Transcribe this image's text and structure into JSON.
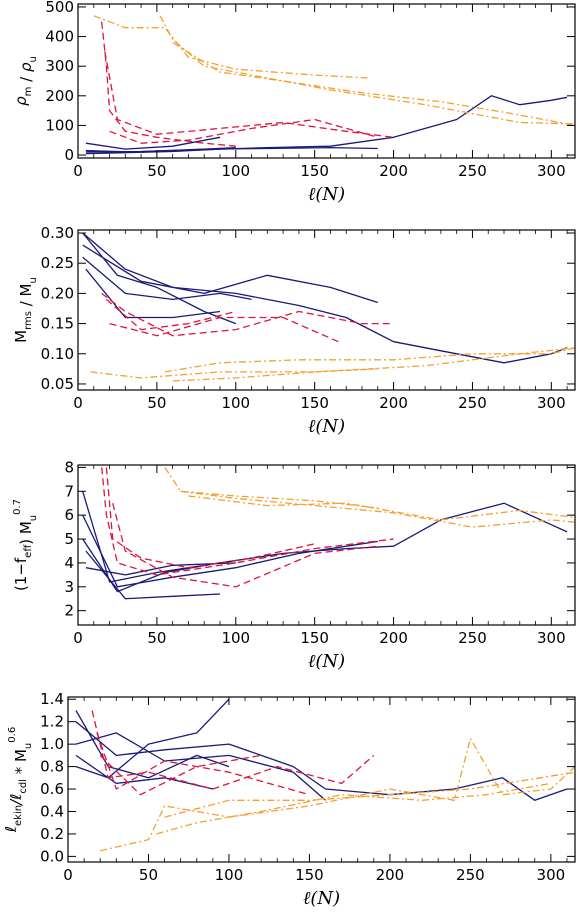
{
  "chart_data": [
    {
      "type": "line",
      "title": "",
      "ylabel": "ρ_m / ρ_u",
      "ylabel_parts": {
        "a": "ρ",
        "a_sub": "m",
        "mid": " / ",
        "b": "ρ",
        "b_sub": "u"
      },
      "xlabel": "ℓ(N)",
      "xlim": [
        0,
        315
      ],
      "ylim": [
        -10,
        510
      ],
      "xticks": [
        "0",
        "50",
        "100",
        "150",
        "200",
        "250",
        "300"
      ],
      "xtick_values": [
        0,
        50,
        100,
        150,
        200,
        250,
        300
      ],
      "yticks": [
        "0",
        "100",
        "200",
        "300",
        "400",
        "500"
      ],
      "ytick_values": [
        0,
        100,
        200,
        300,
        400,
        500
      ],
      "colors": {
        "navy": "#1a1a7a",
        "red": "#e0143c",
        "orange": "#f4a030"
      },
      "series": [
        {
          "color": "navy",
          "style": "solid",
          "x": [
            5,
            40,
            80,
            120,
            160,
            200,
            240,
            262,
            280,
            300,
            310
          ],
          "y": [
            15,
            10,
            18,
            25,
            30,
            60,
            120,
            200,
            170,
            185,
            195
          ]
        },
        {
          "color": "navy",
          "style": "solid",
          "x": [
            5,
            40,
            80,
            120,
            160,
            190
          ],
          "y": [
            10,
            12,
            20,
            22,
            25,
            22
          ]
        },
        {
          "color": "navy",
          "style": "solid",
          "x": [
            5,
            30,
            60,
            90
          ],
          "y": [
            40,
            20,
            30,
            60
          ]
        },
        {
          "color": "navy",
          "style": "solid",
          "x": [
            5,
            30,
            60,
            100
          ],
          "y": [
            15,
            10,
            15,
            25
          ]
        },
        {
          "color": "navy",
          "style": "solid",
          "x": [
            5,
            30,
            60,
            90
          ],
          "y": [
            5,
            8,
            12,
            20
          ]
        },
        {
          "color": "red",
          "style": "dashed",
          "x": [
            15,
            18,
            20,
            30,
            50,
            80,
            100
          ],
          "y": [
            450,
            300,
            150,
            80,
            60,
            40,
            30
          ]
        },
        {
          "color": "red",
          "style": "dashed",
          "x": [
            17,
            25,
            50,
            90,
            130,
            170,
            200
          ],
          "y": [
            350,
            120,
            70,
            90,
            110,
            80,
            60
          ]
        },
        {
          "color": "red",
          "style": "dashed",
          "x": [
            20,
            40,
            70,
            110,
            150,
            190
          ],
          "y": [
            80,
            40,
            50,
            90,
            120,
            60
          ]
        },
        {
          "color": "orange",
          "style": "dashdot",
          "x": [
            10,
            30,
            55,
            70,
            100,
            150,
            185
          ],
          "y": [
            470,
            430,
            430,
            330,
            290,
            270,
            260
          ]
        },
        {
          "color": "orange",
          "style": "dashdot",
          "x": [
            52,
            60,
            80,
            120,
            160,
            220,
            280,
            315
          ],
          "y": [
            470,
            390,
            300,
            260,
            220,
            170,
            110,
            105
          ]
        },
        {
          "color": "orange",
          "style": "dashdot",
          "x": [
            60,
            90,
            130,
            180,
            230,
            275,
            315
          ],
          "y": [
            380,
            280,
            250,
            210,
            180,
            140,
            100
          ]
        }
      ]
    },
    {
      "type": "line",
      "title": "",
      "ylabel": "M_rms / M_u",
      "ylabel_parts": {
        "a": "M",
        "a_sub": "rms",
        "mid": " / ",
        "b": "M",
        "b_sub": "u"
      },
      "xlabel": "ℓ(N)",
      "xlim": [
        0,
        315
      ],
      "ylim": [
        0.04,
        0.305
      ],
      "xticks": [
        "0",
        "50",
        "100",
        "150",
        "200",
        "250",
        "300"
      ],
      "xtick_values": [
        0,
        50,
        100,
        150,
        200,
        250,
        300
      ],
      "yticks": [
        "0.05",
        "0.10",
        "0.15",
        "0.20",
        "0.25",
        "0.30"
      ],
      "ytick_values": [
        0.05,
        0.1,
        0.15,
        0.2,
        0.25,
        0.3
      ],
      "colors": {
        "navy": "#1a1a7a",
        "red": "#e0143c",
        "orange": "#f4a030"
      },
      "series": [
        {
          "color": "navy",
          "style": "solid",
          "x": [
            3,
            30,
            60,
            100,
            140,
            170,
            200,
            240,
            270,
            300,
            310
          ],
          "y": [
            0.3,
            0.24,
            0.21,
            0.2,
            0.18,
            0.16,
            0.12,
            0.1,
            0.085,
            0.1,
            0.11
          ]
        },
        {
          "color": "navy",
          "style": "solid",
          "x": [
            3,
            40,
            80,
            120,
            160,
            190
          ],
          "y": [
            0.28,
            0.22,
            0.2,
            0.23,
            0.21,
            0.185
          ]
        },
        {
          "color": "navy",
          "style": "solid",
          "x": [
            3,
            30,
            60,
            90,
            110
          ],
          "y": [
            0.26,
            0.2,
            0.19,
            0.2,
            0.19
          ]
        },
        {
          "color": "navy",
          "style": "solid",
          "x": [
            3,
            25,
            50,
            80,
            100
          ],
          "y": [
            0.3,
            0.23,
            0.21,
            0.17,
            0.15
          ]
        },
        {
          "color": "navy",
          "style": "solid",
          "x": [
            5,
            30,
            60,
            90
          ],
          "y": [
            0.24,
            0.16,
            0.16,
            0.17
          ]
        },
        {
          "color": "red",
          "style": "dashed",
          "x": [
            15,
            30,
            60,
            100,
            140,
            180,
            200
          ],
          "y": [
            0.2,
            0.17,
            0.13,
            0.14,
            0.17,
            0.15,
            0.15
          ]
        },
        {
          "color": "red",
          "style": "dashed",
          "x": [
            18,
            40,
            70,
            100
          ],
          "y": [
            0.19,
            0.14,
            0.15,
            0.17
          ]
        },
        {
          "color": "red",
          "style": "dashed",
          "x": [
            20,
            50,
            90,
            130,
            165
          ],
          "y": [
            0.15,
            0.13,
            0.16,
            0.16,
            0.12
          ]
        },
        {
          "color": "orange",
          "style": "dashdot",
          "x": [
            8,
            40,
            90,
            150,
            190
          ],
          "y": [
            0.07,
            0.06,
            0.07,
            0.07,
            0.075
          ]
        },
        {
          "color": "orange",
          "style": "dashdot",
          "x": [
            55,
            90,
            140,
            200,
            250,
            300,
            315
          ],
          "y": [
            0.07,
            0.085,
            0.09,
            0.09,
            0.1,
            0.1,
            0.11
          ]
        },
        {
          "color": "orange",
          "style": "dashdot",
          "x": [
            60,
            100,
            150,
            220,
            280,
            315
          ],
          "y": [
            0.055,
            0.06,
            0.07,
            0.08,
            0.1,
            0.11
          ]
        }
      ]
    },
    {
      "type": "line",
      "title": "",
      "ylabel": "(1−f_eff) M_u^0.7",
      "ylabel_parts": {
        "a": "(1−f",
        "a_sub": "eff",
        "mid": ")  M",
        "b_sub": "u",
        "b_sup": "0.7"
      },
      "xlabel": "ℓ(N)",
      "xlim": [
        0,
        315
      ],
      "ylim": [
        1.4,
        8.1
      ],
      "xticks": [
        "0",
        "50",
        "100",
        "150",
        "200",
        "250",
        "300"
      ],
      "xtick_values": [
        0,
        50,
        100,
        150,
        200,
        250,
        300
      ],
      "yticks": [
        "2",
        "3",
        "4",
        "5",
        "6",
        "7",
        "8"
      ],
      "ytick_values": [
        2,
        3,
        4,
        5,
        6,
        7,
        8
      ],
      "colors": {
        "navy": "#1a1a7a",
        "red": "#e0143c",
        "orange": "#f4a030"
      },
      "series": [
        {
          "color": "navy",
          "style": "solid",
          "x": [
            3,
            20,
            50,
            90,
            130,
            170,
            200,
            230,
            270,
            300,
            310
          ],
          "y": [
            7,
            3.2,
            3.6,
            4.0,
            4.4,
            4.6,
            4.7,
            5.8,
            6.5,
            5.6,
            5.3
          ]
        },
        {
          "color": "navy",
          "style": "solid",
          "x": [
            3,
            25,
            60,
            100,
            140,
            180,
            190
          ],
          "y": [
            6,
            3.0,
            3.4,
            3.8,
            4.4,
            4.8,
            4.9
          ]
        },
        {
          "color": "navy",
          "style": "solid",
          "x": [
            3,
            25,
            55,
            90,
            110
          ],
          "y": [
            5,
            2.8,
            3.6,
            4.0,
            4.2
          ]
        },
        {
          "color": "navy",
          "style": "solid",
          "x": [
            5,
            30,
            60,
            90
          ],
          "y": [
            4.5,
            2.5,
            2.6,
            2.7
          ]
        },
        {
          "color": "navy",
          "style": "solid",
          "x": [
            5,
            30,
            60,
            100
          ],
          "y": [
            3.8,
            3.5,
            3.9,
            4.0
          ]
        },
        {
          "color": "red",
          "style": "dashed",
          "x": [
            15,
            18,
            25,
            50,
            100,
            150,
            200
          ],
          "y": [
            8,
            6,
            4,
            3.5,
            4.0,
            4.6,
            5.0
          ]
        },
        {
          "color": "red",
          "style": "dashed",
          "x": [
            18,
            22,
            40,
            70,
            110,
            150
          ],
          "y": [
            8,
            5,
            4.2,
            3.8,
            4.2,
            4.8
          ]
        },
        {
          "color": "red",
          "style": "dashed",
          "x": [
            22,
            30,
            60,
            100,
            150,
            190
          ],
          "y": [
            6.5,
            4.5,
            3.4,
            3.0,
            4.4,
            4.7
          ]
        },
        {
          "color": "orange",
          "style": "dashdot",
          "x": [
            55,
            65,
            100,
            150,
            190
          ],
          "y": [
            8,
            7.0,
            6.8,
            6.6,
            6.3
          ]
        },
        {
          "color": "orange",
          "style": "dashdot",
          "x": [
            65,
            100,
            150,
            200,
            250,
            300,
            315
          ],
          "y": [
            7.0,
            6.7,
            6.4,
            6.1,
            5.5,
            5.8,
            5.7
          ]
        },
        {
          "color": "orange",
          "style": "dashdot",
          "x": [
            70,
            120,
            170,
            230,
            280,
            315
          ],
          "y": [
            6.8,
            6.4,
            6.5,
            5.8,
            6.2,
            5.9
          ]
        }
      ]
    },
    {
      "type": "line",
      "title": "",
      "ylabel": "ℓ_ekin/ℓ_cdl * M_u^0.6",
      "ylabel_parts": {
        "a": "ℓ",
        "a_sub": "ekin",
        "mid": "/ℓ",
        "b_sub": "cdl",
        "c": "  *  M",
        "c_sub": "u",
        "c_sup": "0.6"
      },
      "xlabel": "ℓ(N)",
      "xlim": [
        0,
        315
      ],
      "ylim": [
        -0.05,
        1.42
      ],
      "xticks": [
        "0",
        "50",
        "100",
        "150",
        "200",
        "250",
        "300"
      ],
      "xtick_values": [
        0,
        50,
        100,
        150,
        200,
        250,
        300
      ],
      "yticks": [
        "0.0",
        "0.2",
        "0.4",
        "0.6",
        "0.8",
        "1.0",
        "1.2",
        "1.4"
      ],
      "ytick_values": [
        0.0,
        0.2,
        0.4,
        0.6,
        0.8,
        1.0,
        1.2,
        1.4
      ],
      "colors": {
        "navy": "#1a1a7a",
        "red": "#e0143c",
        "orange": "#f4a030"
      },
      "series": [
        {
          "color": "navy",
          "style": "solid",
          "x": [
            5,
            30,
            60,
            100,
            140,
            160,
            200,
            240,
            270,
            290,
            310
          ],
          "y": [
            1.2,
            0.9,
            0.95,
            1.0,
            0.8,
            0.6,
            0.55,
            0.6,
            0.7,
            0.5,
            0.6
          ]
        },
        {
          "color": "navy",
          "style": "solid",
          "x": [
            5,
            30,
            60,
            100,
            140,
            160
          ],
          "y": [
            1.0,
            1.1,
            0.85,
            0.9,
            0.75,
            0.5
          ]
        },
        {
          "color": "navy",
          "style": "solid",
          "x": [
            5,
            25,
            50,
            80,
            100
          ],
          "y": [
            0.8,
            0.7,
            1.0,
            1.1,
            1.4
          ]
        },
        {
          "color": "navy",
          "style": "solid",
          "x": [
            5,
            25,
            50,
            80,
            100
          ],
          "y": [
            1.3,
            0.8,
            0.7,
            0.9,
            0.8
          ]
        },
        {
          "color": "navy",
          "style": "solid",
          "x": [
            5,
            30,
            60,
            90
          ],
          "y": [
            0.9,
            0.65,
            0.7,
            0.6
          ]
        },
        {
          "color": "red",
          "style": "dashed",
          "x": [
            15,
            25,
            50,
            90,
            130,
            170,
            190
          ],
          "y": [
            1.3,
            0.7,
            0.75,
            0.6,
            0.8,
            0.65,
            0.9
          ]
        },
        {
          "color": "red",
          "style": "dashed",
          "x": [
            18,
            30,
            60,
            100,
            150
          ],
          "y": [
            1.1,
            0.6,
            0.85,
            0.75,
            0.55
          ]
        },
        {
          "color": "red",
          "style": "dashed",
          "x": [
            20,
            45,
            80,
            120
          ],
          "y": [
            0.9,
            0.55,
            0.8,
            0.9
          ]
        },
        {
          "color": "orange",
          "style": "dashdot",
          "x": [
            20,
            50,
            60,
            100,
            150,
            200,
            240,
            250,
            270,
            300,
            315
          ],
          "y": [
            0.05,
            0.15,
            0.45,
            0.35,
            0.45,
            0.6,
            0.5,
            1.05,
            0.55,
            0.6,
            0.8
          ]
        },
        {
          "color": "orange",
          "style": "dashdot",
          "x": [
            55,
            80,
            120,
            170,
            220,
            260,
            300
          ],
          "y": [
            0.2,
            0.3,
            0.4,
            0.55,
            0.5,
            0.55,
            0.65
          ]
        },
        {
          "color": "orange",
          "style": "dashdot",
          "x": [
            60,
            100,
            150,
            200,
            250,
            315
          ],
          "y": [
            0.35,
            0.5,
            0.5,
            0.55,
            0.6,
            0.75
          ]
        }
      ]
    }
  ]
}
